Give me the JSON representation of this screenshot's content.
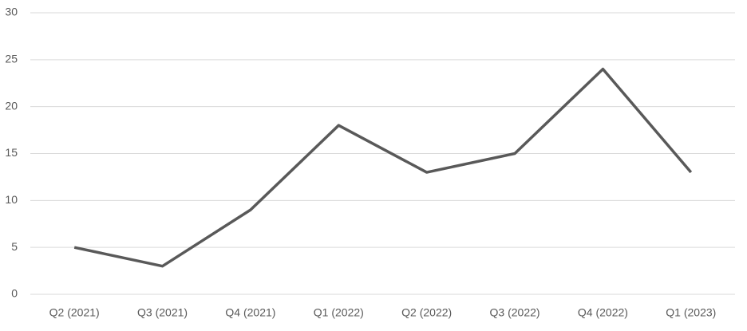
{
  "chart_data": {
    "type": "line",
    "categories": [
      "Q2 (2021)",
      "Q3 (2021)",
      "Q4 (2021)",
      "Q1 (2022)",
      "Q2 (2022)",
      "Q3 (2022)",
      "Q4 (2022)",
      "Q1 (2023)"
    ],
    "values": [
      5,
      3,
      9,
      18,
      13,
      15,
      24,
      13
    ],
    "color": "#595959",
    "ylim": [
      0,
      30
    ],
    "yticks": [
      0,
      5,
      10,
      15,
      20,
      25,
      30
    ],
    "grid": true
  }
}
